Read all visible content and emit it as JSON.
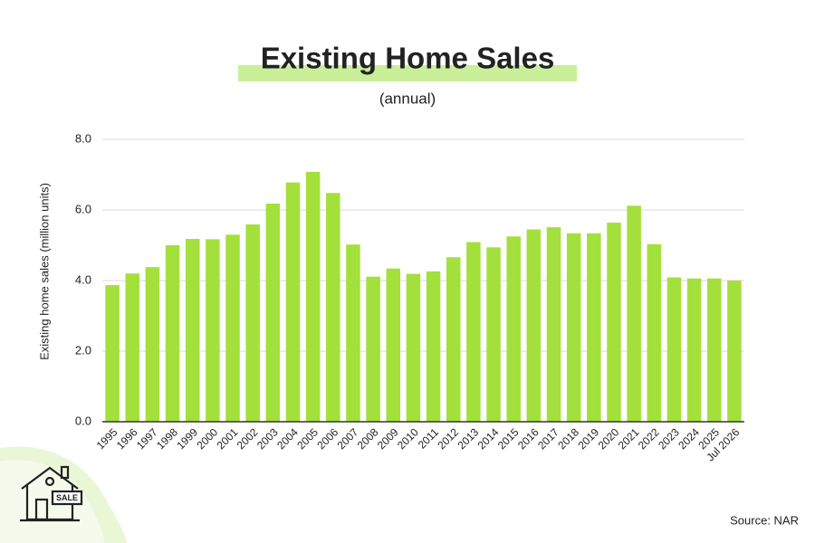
{
  "chart_data": {
    "type": "bar",
    "title": "Existing Home Sales",
    "subtitle": "(annual)",
    "y_label": "Existing home sales (million units)",
    "source": "Source: NAR",
    "icon_label": "SALE",
    "categories": [
      "1995",
      "1996",
      "1997",
      "1998",
      "1999",
      "2000",
      "2001",
      "2002",
      "2003",
      "2004",
      "2005",
      "2006",
      "2007",
      "2008",
      "2009",
      "2010",
      "2011",
      "2012",
      "2013",
      "2014",
      "2015",
      "2016",
      "2017",
      "2018",
      "2019",
      "2020",
      "2021",
      "2022",
      "2023",
      "2024",
      "2025",
      "Jul 2026"
    ],
    "values": [
      3.87,
      4.2,
      4.38,
      5.0,
      5.18,
      5.17,
      5.3,
      5.59,
      6.18,
      6.78,
      7.08,
      6.48,
      5.02,
      4.11,
      4.34,
      4.19,
      4.26,
      4.66,
      5.09,
      4.94,
      5.25,
      5.45,
      5.51,
      5.34,
      5.34,
      5.64,
      6.12,
      5.03,
      4.09,
      4.06,
      4.06,
      4.0
    ],
    "color": "#a3e03b",
    "ylim": [
      0,
      8
    ],
    "yticks": [
      {
        "value": 0,
        "label": "0.0"
      },
      {
        "value": 2,
        "label": "2.0"
      },
      {
        "value": 4,
        "label": "4.0"
      },
      {
        "value": 6,
        "label": "6.0"
      },
      {
        "value": 8,
        "label": "8.0"
      }
    ],
    "grid": true
  }
}
